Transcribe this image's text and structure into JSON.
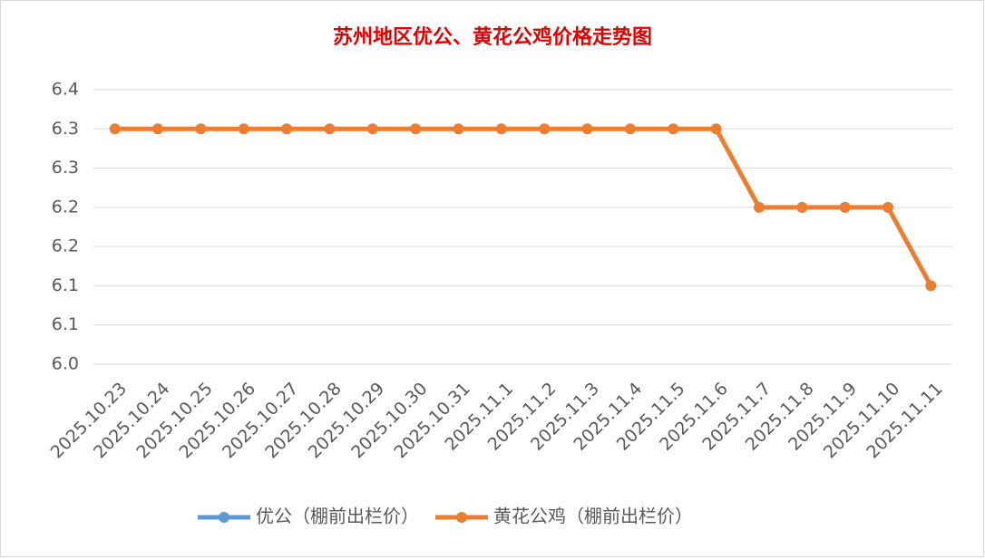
{
  "chart_data": {
    "type": "line",
    "title": "苏州地区优公、黄花公鸡价格走势图",
    "categories": [
      "2025.10.23",
      "2025.10.24",
      "2025.10.25",
      "2025.10.26",
      "2025.10.27",
      "2025.10.28",
      "2025.10.29",
      "2025.10.30",
      "2025.10.31",
      "2025.11.1",
      "2025.11.2",
      "2025.11.3",
      "2025.11.4",
      "2025.11.5",
      "2025.11.6",
      "2025.11.7",
      "2025.11.8",
      "2025.11.9",
      "2025.11.10",
      "2025.11.11"
    ],
    "series": [
      {
        "name": "优公（棚前出栏价）",
        "color": "#5b9bd5",
        "values": [
          null,
          null,
          null,
          null,
          null,
          null,
          null,
          null,
          null,
          null,
          null,
          null,
          null,
          null,
          null,
          null,
          null,
          null,
          null,
          null
        ]
      },
      {
        "name": "黄花公鸡（棚前出栏价）",
        "color": "#ed7d31",
        "values": [
          6.3,
          6.3,
          6.3,
          6.3,
          6.3,
          6.3,
          6.3,
          6.3,
          6.3,
          6.3,
          6.3,
          6.3,
          6.3,
          6.3,
          6.3,
          6.2,
          6.2,
          6.2,
          6.2,
          6.1
        ]
      }
    ],
    "ylim": [
      6.0,
      6.35
    ],
    "yticks": [
      {
        "value": 6.0,
        "label": "6.0"
      },
      {
        "value": 6.05,
        "label": "6.1"
      },
      6.1,
      {
        "value": 6.15,
        "label": "6.2"
      },
      6.2,
      {
        "value": 6.25,
        "label": "6.3"
      },
      6.3,
      {
        "value": 6.35,
        "label": "6.4"
      }
    ],
    "grid": true,
    "legend": "bottom"
  }
}
